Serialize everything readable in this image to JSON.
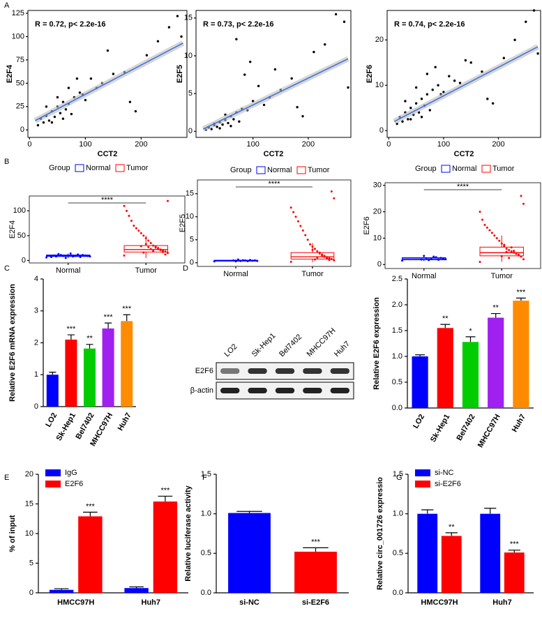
{
  "chart_data": [
    {
      "type": "scatter",
      "panel": "A",
      "annotation": "R = 0.72,  p< 2.2e-16",
      "xlabel": "CCT2",
      "ylabel": "E2F4",
      "xlim": [
        -3,
        282
      ],
      "xticks": [
        0,
        100,
        200
      ],
      "ylim": [
        -8,
        128
      ],
      "yticks": [
        0,
        25,
        50,
        75,
        100,
        125
      ],
      "x": [
        15,
        20,
        25,
        30,
        35,
        40,
        45,
        50,
        55,
        60,
        65,
        70,
        75,
        80,
        90,
        100,
        110,
        120,
        130,
        150,
        170,
        180,
        190,
        210,
        230,
        250,
        265,
        272,
        30,
        40,
        50,
        60,
        70,
        85,
        95,
        140
      ],
      "y": [
        5,
        12,
        8,
        15,
        10,
        20,
        14,
        25,
        18,
        30,
        22,
        28,
        17,
        35,
        40,
        32,
        55,
        45,
        50,
        60,
        62,
        30,
        20,
        80,
        95,
        110,
        122,
        100,
        25,
        8,
        35,
        12,
        45,
        55,
        38,
        85
      ],
      "fit": {
        "x": [
          10,
          275
        ],
        "y": [
          10,
          93
        ]
      },
      "color": "#000000",
      "fit_color": "#3a6fd8"
    },
    {
      "type": "scatter",
      "annotation": "R = 0.73,  p< 2.2e-16",
      "xlabel": "CCT2",
      "ylabel": "E2F5",
      "xlim": [
        -3,
        277
      ],
      "xticks": [
        100,
        200
      ],
      "ylim": [
        -0.8,
        16
      ],
      "yticks": [
        0,
        5,
        10,
        15
      ],
      "x": [
        15,
        20,
        25,
        30,
        35,
        40,
        45,
        50,
        55,
        60,
        65,
        70,
        75,
        80,
        90,
        100,
        110,
        120,
        130,
        150,
        170,
        180,
        190,
        210,
        230,
        250,
        265,
        272,
        30,
        40,
        50,
        60,
        70,
        85,
        95,
        140
      ],
      "y": [
        0.2,
        0.5,
        0.3,
        0.8,
        0.6,
        1.2,
        0.9,
        1.5,
        1.1,
        2.0,
        1.6,
        2.5,
        1.3,
        3.0,
        2.8,
        4.0,
        6.0,
        3.5,
        4.5,
        5.5,
        7.0,
        3.2,
        2.0,
        10.5,
        11.5,
        15.5,
        14.5,
        5.8,
        1.0,
        0.4,
        2.2,
        0.7,
        12.2,
        7.5,
        9.2,
        8.2
      ],
      "fit": {
        "x": [
          10,
          272
        ],
        "y": [
          0.3,
          9.6
        ]
      },
      "color": "#000000",
      "fit_color": "#3a6fd8"
    },
    {
      "type": "scatter",
      "annotation": "R = 0.74,  p< 2.2e-16",
      "xlabel": "CCT2",
      "ylabel": "E2F6",
      "xlim": [
        -3,
        277
      ],
      "xticks": [
        0,
        100,
        200
      ],
      "ylim": [
        -1.5,
        26.5
      ],
      "yticks": [
        0,
        10,
        20
      ],
      "x": [
        15,
        20,
        25,
        30,
        35,
        40,
        45,
        50,
        55,
        60,
        65,
        70,
        75,
        80,
        90,
        100,
        110,
        120,
        130,
        150,
        170,
        180,
        190,
        210,
        230,
        250,
        265,
        272,
        30,
        40,
        50,
        60,
        70,
        85,
        95,
        140
      ],
      "y": [
        1.5,
        3,
        2,
        4,
        2.5,
        5,
        3.5,
        6,
        4,
        7,
        5.5,
        8,
        4.5,
        9,
        10,
        8.5,
        12,
        11,
        10.5,
        15,
        13,
        7,
        6,
        16,
        20,
        24,
        26.5,
        17,
        6.5,
        2.5,
        9.5,
        3,
        12.5,
        14,
        8,
        15.5
      ],
      "fit": {
        "x": [
          10,
          272
        ],
        "y": [
          2,
          18.5
        ]
      },
      "color": "#000000",
      "fit_color": "#3a6fd8"
    },
    {
      "type": "box",
      "panel": "B",
      "legend_title": "Group",
      "ylabel": "E2F4",
      "significance": "****",
      "ylim": [
        -5,
        130
      ],
      "yticks": [
        0,
        50,
        100
      ],
      "groups": [
        {
          "name": "Normal",
          "color": "#0000ff",
          "q1": 8,
          "median": 9.5,
          "q3": 11,
          "whisker_low": 5,
          "whisker_high": 14,
          "points": [
            6,
            8,
            9,
            10,
            11,
            7,
            12,
            9,
            8,
            14,
            10,
            5,
            9,
            11,
            13,
            8,
            10,
            7
          ]
        },
        {
          "name": "Tumor",
          "color": "#ff0000",
          "q1": 17,
          "median": 22,
          "q3": 30,
          "whisker_low": 5,
          "whisker_high": 50,
          "points": [
            10,
            15,
            18,
            20,
            22,
            25,
            28,
            30,
            35,
            40,
            45,
            50,
            55,
            60,
            65,
            70,
            80,
            90,
            100,
            110,
            120,
            12,
            17,
            21,
            24,
            26,
            19,
            23,
            27,
            33,
            16,
            29
          ]
        }
      ]
    },
    {
      "type": "box",
      "legend_title": "Group",
      "ylabel": "E2F5",
      "significance": "****",
      "ylim": [
        -0.8,
        18
      ],
      "yticks": [
        0,
        5,
        10,
        15
      ],
      "groups": [
        {
          "name": "Normal",
          "color": "#0000ff",
          "q1": 0.35,
          "median": 0.45,
          "q3": 0.55,
          "whisker_low": 0.25,
          "whisker_high": 0.7,
          "points": [
            0.3,
            0.4,
            0.5,
            0.45,
            0.6,
            0.35,
            0.5,
            0.55,
            0.4,
            0.7,
            0.3,
            0.5
          ]
        },
        {
          "name": "Tumor",
          "color": "#ff0000",
          "q1": 0.8,
          "median": 1.3,
          "q3": 2.2,
          "whisker_low": 0.1,
          "whisker_high": 4.3,
          "points": [
            0.2,
            0.5,
            0.8,
            1,
            1.2,
            1.5,
            1.8,
            2,
            2.5,
            3,
            3.5,
            4,
            5,
            6,
            7,
            8,
            9,
            10,
            11,
            12,
            14,
            15.5,
            0.6,
            0.9,
            1.3,
            1.6,
            2.2,
            1.1,
            0.7,
            2.8
          ]
        }
      ]
    },
    {
      "type": "box",
      "legend_title": "Group",
      "ylabel": "E2F6",
      "significance": "****",
      "ylim": [
        -1.5,
        31
      ],
      "yticks": [
        0,
        10,
        20,
        30
      ],
      "groups": [
        {
          "name": "Normal",
          "color": "#0000ff",
          "q1": 1.8,
          "median": 2.2,
          "q3": 2.6,
          "whisker_low": 1.3,
          "whisker_high": 3.3,
          "points": [
            1.5,
            2,
            2.2,
            2.5,
            1.8,
            2.8,
            3,
            2.1,
            1.7,
            2.4,
            3.3,
            1.9
          ]
        },
        {
          "name": "Tumor",
          "color": "#ff0000",
          "q1": 3.3,
          "median": 4.5,
          "q3": 6.6,
          "whisker_low": 1,
          "whisker_high": 11,
          "points": [
            1,
            2,
            3,
            3.5,
            4,
            4.5,
            5,
            5.5,
            6,
            7,
            8,
            9,
            10,
            11,
            12,
            13,
            14,
            15,
            17,
            20,
            23,
            26,
            3.8,
            4.2,
            5.2,
            6.5,
            2.5,
            4.8,
            7.5,
            3.2
          ]
        }
      ]
    },
    {
      "type": "bar",
      "panel": "C",
      "ylabel": "Relative E2F6 mRNA expression",
      "categories": [
        "LO2",
        "Sk-Hep1",
        "Bel7402",
        "MHCC97H",
        "Huh7"
      ],
      "values": [
        1.0,
        2.1,
        1.82,
        2.45,
        2.68
      ],
      "errors": [
        0.08,
        0.15,
        0.13,
        0.17,
        0.2
      ],
      "colors": [
        "#0000ff",
        "#ff0000",
        "#00cc00",
        "#a020f0",
        "#ff8c00"
      ],
      "stars": [
        null,
        "***",
        "**",
        "***",
        "***"
      ],
      "ylim": [
        0,
        4
      ],
      "yticks": [
        0,
        1,
        2,
        3,
        4
      ]
    },
    {
      "type": "blot",
      "panel": "D",
      "lanes": [
        "LO2",
        "Sk-Hep1",
        "Bel7402",
        "MHCC97H",
        "Huh7"
      ],
      "rows": [
        "E2F6",
        "β-actin"
      ]
    },
    {
      "type": "bar",
      "ylabel": "Relative E2F6 expression",
      "categories": [
        "LO2",
        "Sk-Hep1",
        "Bel7402",
        "MHCC97H",
        "Huh7"
      ],
      "values": [
        1.0,
        1.55,
        1.28,
        1.75,
        2.08
      ],
      "errors": [
        0.03,
        0.07,
        0.1,
        0.08,
        0.05
      ],
      "colors": [
        "#0000ff",
        "#ff0000",
        "#00cc00",
        "#a020f0",
        "#ff8c00"
      ],
      "stars": [
        null,
        "**",
        "*",
        "**",
        "***"
      ],
      "ylim": [
        0,
        2.5
      ],
      "yticks": [
        {
          "value": 0,
          "label": "0.0"
        },
        0.5,
        {
          "value": 1,
          "label": "1.0"
        },
        1.5,
        {
          "value": 2,
          "label": "2.0"
        },
        2.5
      ]
    },
    {
      "type": "grouped",
      "panel": "E",
      "ylabel": "% of input",
      "categories": [
        "HMCC97H",
        "Huh7"
      ],
      "series": [
        {
          "name": "IgG",
          "color": "#0000ff",
          "values": [
            0.5,
            0.8
          ],
          "errors": [
            0.2,
            0.2
          ],
          "stars": [
            null,
            null
          ]
        },
        {
          "name": "E2F6",
          "color": "#ff0000",
          "values": [
            12.9,
            15.4
          ],
          "errors": [
            0.7,
            0.9
          ],
          "stars": [
            "***",
            "***"
          ]
        }
      ],
      "ylim": [
        0,
        20
      ],
      "yticks": [
        0,
        5,
        10,
        15,
        20
      ]
    },
    {
      "type": "bar",
      "panel": "F",
      "ylabel": "Relative luciferase activity",
      "categories": [
        "si-NC",
        "si-E2F6"
      ],
      "values": [
        1.01,
        0.52
      ],
      "errors": [
        0.02,
        0.05
      ],
      "colors": [
        "#0000ff",
        "#ff0000"
      ],
      "stars": [
        null,
        "***"
      ],
      "ylim": [
        0,
        1.5
      ],
      "yticks": [
        {
          "value": 0,
          "label": "0.0"
        },
        0.5,
        {
          "value": 1,
          "label": "1.0"
        },
        1.5
      ]
    },
    {
      "type": "grouped",
      "panel": "G",
      "ylabel": "Relative circ_001726 expressio",
      "categories": [
        "HMCC97H",
        "Huh7"
      ],
      "series": [
        {
          "name": "si-NC",
          "color": "#0000ff",
          "values": [
            1.0,
            1.0
          ],
          "errors": [
            0.05,
            0.07
          ],
          "stars": [
            null,
            null
          ]
        },
        {
          "name": "si-E2F6",
          "color": "#ff0000",
          "values": [
            0.72,
            0.51
          ],
          "errors": [
            0.04,
            0.03
          ],
          "stars": [
            "**",
            "***"
          ]
        }
      ],
      "ylim": [
        0,
        1.5
      ],
      "yticks": [
        {
          "value": 0,
          "label": "0.0"
        },
        0.5,
        {
          "value": 1,
          "label": "1.0"
        },
        1.5
      ]
    }
  ]
}
